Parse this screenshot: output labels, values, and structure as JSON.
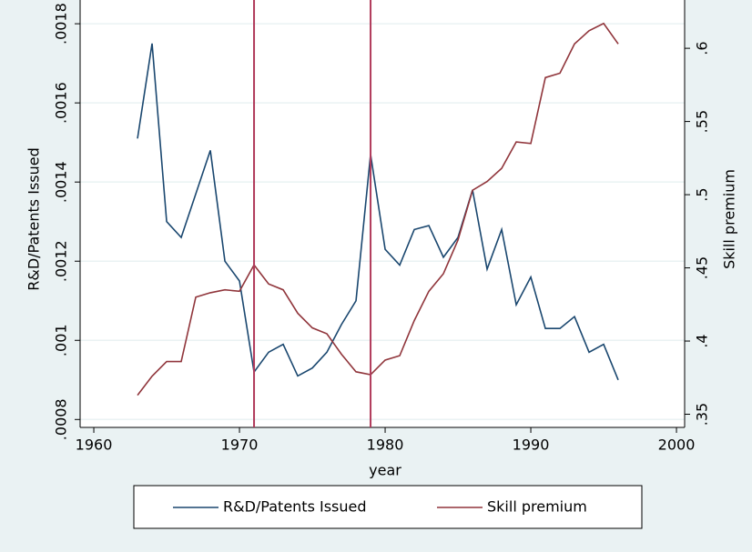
{
  "chart_data": {
    "type": "line",
    "x": [
      1963,
      1964,
      1965,
      1966,
      1967,
      1968,
      1969,
      1970,
      1971,
      1972,
      1973,
      1974,
      1975,
      1976,
      1977,
      1978,
      1979,
      1980,
      1981,
      1982,
      1983,
      1984,
      1985,
      1986,
      1987,
      1988,
      1989,
      1990,
      1991,
      1992,
      1993,
      1994,
      1995,
      1996
    ],
    "series": [
      {
        "name": "R&D/Patents Issued",
        "color": "#1a476f",
        "values": [
          0.00151,
          0.00175,
          0.0013,
          0.00126,
          0.00137,
          0.00148,
          0.0012,
          0.00115,
          0.00092,
          0.00097,
          0.00099,
          0.00091,
          0.00093,
          0.00097,
          0.00104,
          0.0011,
          0.00147,
          0.00123,
          0.00119,
          0.00128,
          0.00129,
          0.00121,
          0.00126,
          0.00138,
          0.00118,
          0.00128,
          0.00109,
          0.00116,
          0.00103,
          0.00103,
          0.00106,
          0.00097,
          0.00099,
          0.0009
        ]
      },
      {
        "name": "Skill premium",
        "color": "#90353b",
        "axis": "y2",
        "values": [
          0.363,
          0.376,
          0.386,
          0.386,
          0.43,
          0.433,
          0.435,
          0.434,
          0.452,
          0.439,
          0.435,
          0.419,
          0.409,
          0.405,
          0.391,
          0.379,
          0.377,
          0.387,
          0.39,
          0.414,
          0.434,
          0.446,
          0.469,
          0.503,
          0.509,
          0.518,
          0.536,
          0.535,
          0.58,
          0.583,
          0.603,
          0.612,
          0.617,
          0.603
        ]
      }
    ],
    "xlabel": "year",
    "ylabel": "R&D/Patents Issued",
    "y2label": "Skill premium",
    "xlim": [
      1959.06,
      2000.56
    ],
    "xticks": [
      1960,
      1970,
      1980,
      1990,
      2000
    ],
    "ylim": [
      0.00078,
      0.00186
    ],
    "yticks": [
      {
        "value": 0.0008,
        "label": ".0008"
      },
      {
        "value": 0.001,
        "label": ".001"
      },
      {
        "value": 0.0012,
        "label": ".0012"
      },
      {
        "value": 0.0014,
        "label": ".0014"
      },
      {
        "value": 0.0016,
        "label": ".0016"
      },
      {
        "value": 0.0018,
        "label": ".0018"
      }
    ],
    "y2lim": [
      0.341,
      0.633
    ],
    "y2ticks": [
      {
        "value": 0.35,
        "label": ".35"
      },
      {
        "value": 0.4,
        "label": ".4"
      },
      {
        "value": 0.45,
        "label": ".45"
      },
      {
        "value": 0.5,
        "label": ".5"
      },
      {
        "value": 0.55,
        "label": ".55"
      },
      {
        "value": 0.6,
        "label": ".6"
      }
    ],
    "vlines": [
      1971,
      1979
    ],
    "vline_color": "#b03a5b",
    "grid": true,
    "legend": "bottom"
  }
}
